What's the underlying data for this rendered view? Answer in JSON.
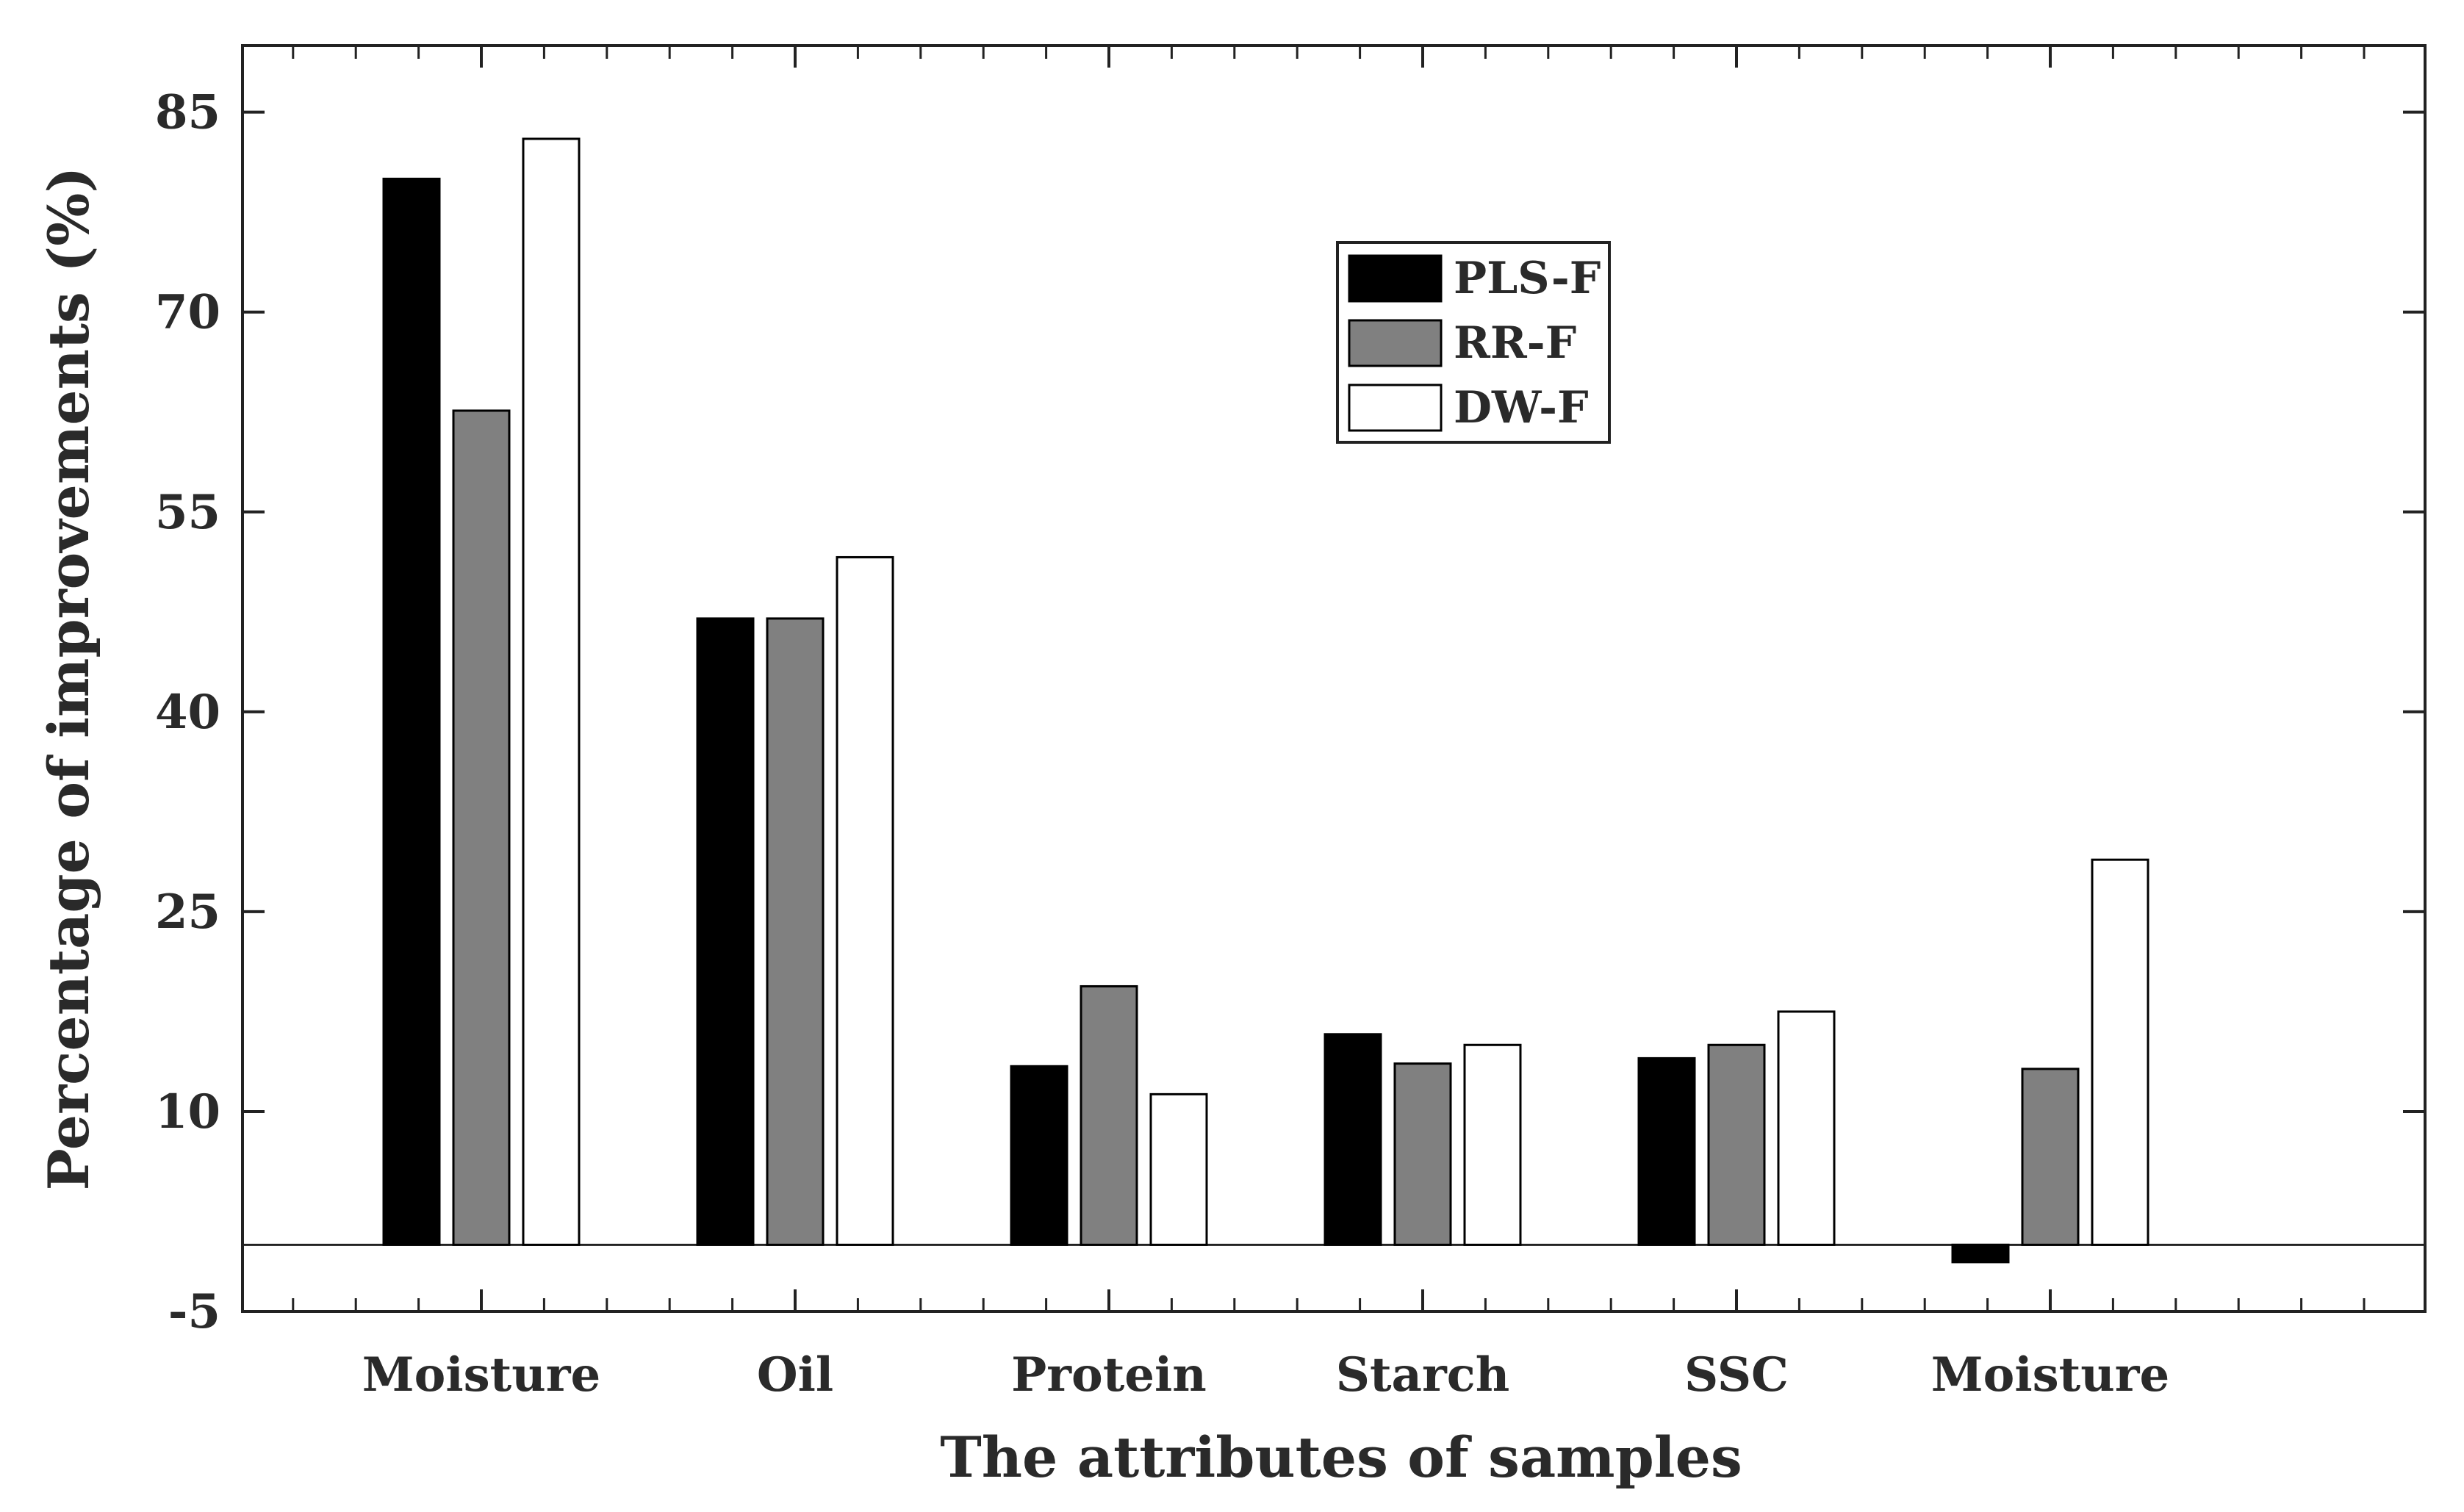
{
  "chart_data": {
    "type": "bar",
    "title": "",
    "xlabel": "The attributes of samples",
    "ylabel": "Percentage of improvements (%)",
    "categories": [
      "Moisture",
      "Oil",
      "Protein",
      "Starch",
      "SSC",
      "Moisture"
    ],
    "series": [
      {
        "name": "PLS-F",
        "color": "#000000",
        "values": [
          80,
          47,
          13.4,
          15.8,
          14,
          -1.3
        ]
      },
      {
        "name": "RR-F",
        "color": "#808080",
        "values": [
          62.6,
          47,
          19.4,
          13.6,
          15,
          13.2
        ]
      },
      {
        "name": "DW-F",
        "color": "#ffffff",
        "values": [
          83,
          51.6,
          11.3,
          15,
          17.5,
          28.9
        ]
      }
    ],
    "ylim": [
      -5,
      90
    ],
    "yticks": [
      -5,
      10,
      25,
      40,
      55,
      70,
      85
    ],
    "baseline": 0,
    "grid": false,
    "legend_position": "upper-middle"
  }
}
